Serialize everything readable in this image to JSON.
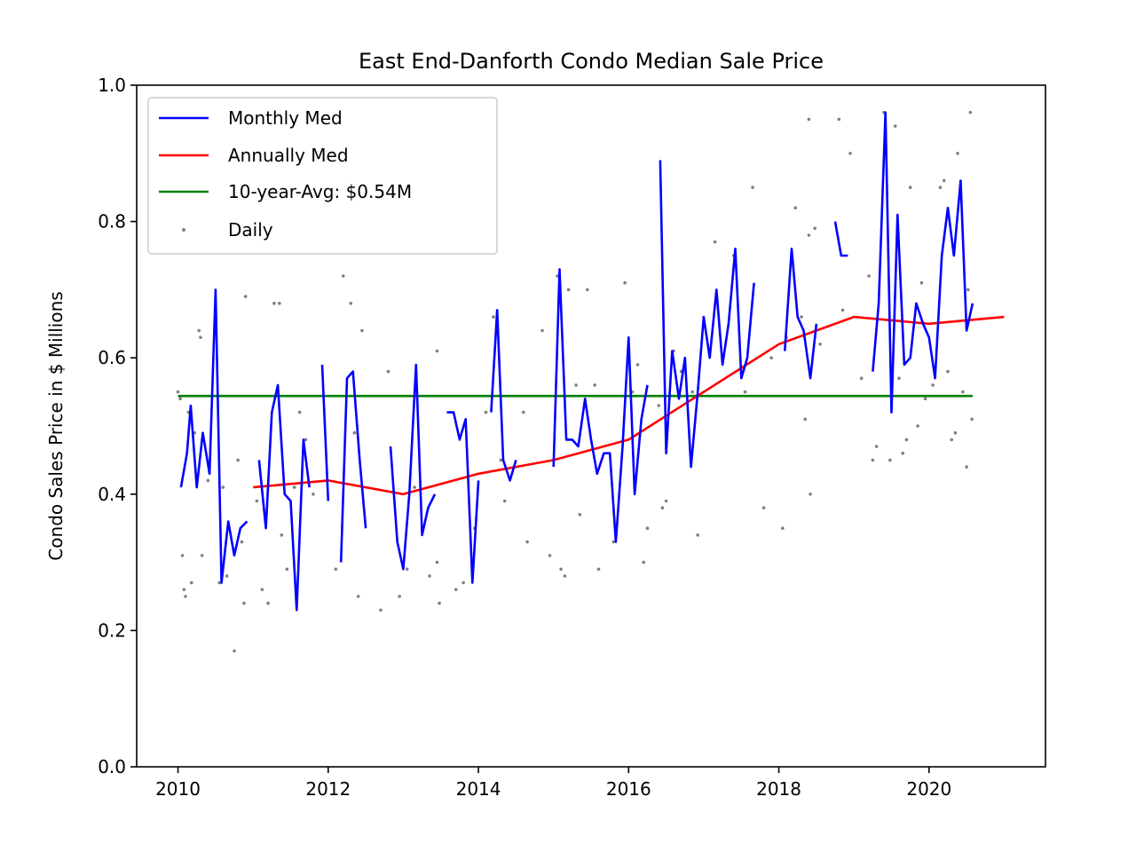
{
  "chart_data": {
    "type": "line",
    "title": "East End-Danforth Condo Median Sale Price",
    "xlabel": "",
    "ylabel": "Condo Sales Price in $ Millions",
    "xlim": [
      2009.45,
      2021.55
    ],
    "ylim": [
      0.0,
      1.0
    ],
    "x_ticks": [
      2010,
      2012,
      2014,
      2016,
      2018,
      2020
    ],
    "x_tick_labels": [
      "2010",
      "2012",
      "2014",
      "2016",
      "2018",
      "2020"
    ],
    "y_ticks": [
      0.0,
      0.2,
      0.4,
      0.6,
      0.8,
      1.0
    ],
    "y_tick_labels": [
      "0.0",
      "0.2",
      "0.4",
      "0.6",
      "0.8",
      "1.0"
    ],
    "grid": false,
    "legend_position": "top-left",
    "legend": [
      {
        "label": "Monthly Med",
        "color": "#0000ff",
        "kind": "line"
      },
      {
        "label": "Annually Med",
        "color": "#ff0000",
        "kind": "line"
      },
      {
        "label": "10-year-Avg: $0.54M",
        "color": "#008000",
        "kind": "line"
      },
      {
        "label": "Daily",
        "color": "#808080",
        "kind": "dot"
      }
    ],
    "series": [
      {
        "name": "Monthly Med",
        "type": "line",
        "color": "#0000ff",
        "segments": [
          [
            [
              2010.04,
              0.41
            ],
            [
              2010.12,
              0.46
            ],
            [
              2010.17,
              0.53
            ],
            [
              2010.25,
              0.41
            ],
            [
              2010.33,
              0.49
            ],
            [
              2010.42,
              0.43
            ],
            [
              2010.5,
              0.7
            ],
            [
              2010.58,
              0.27
            ],
            [
              2010.67,
              0.36
            ],
            [
              2010.75,
              0.31
            ],
            [
              2010.83,
              0.35
            ],
            [
              2010.92,
              0.36
            ]
          ],
          [
            [
              2011.08,
              0.45
            ],
            [
              2011.17,
              0.35
            ],
            [
              2011.25,
              0.52
            ],
            [
              2011.33,
              0.56
            ],
            [
              2011.42,
              0.4
            ],
            [
              2011.5,
              0.39
            ],
            [
              2011.58,
              0.23
            ],
            [
              2011.67,
              0.48
            ],
            [
              2011.75,
              0.41
            ]
          ],
          [
            [
              2011.92,
              0.59
            ],
            [
              2012.0,
              0.39
            ]
          ],
          [
            [
              2012.17,
              0.3
            ],
            [
              2012.25,
              0.57
            ],
            [
              2012.33,
              0.58
            ],
            [
              2012.42,
              0.45
            ],
            [
              2012.5,
              0.35
            ]
          ],
          [
            [
              2012.83,
              0.47
            ],
            [
              2012.92,
              0.33
            ],
            [
              2013.0,
              0.29
            ],
            [
              2013.08,
              0.4
            ],
            [
              2013.17,
              0.59
            ],
            [
              2013.25,
              0.34
            ],
            [
              2013.33,
              0.38
            ],
            [
              2013.42,
              0.4
            ]
          ],
          [
            [
              2013.58,
              0.52
            ],
            [
              2013.67,
              0.52
            ],
            [
              2013.75,
              0.48
            ],
            [
              2013.83,
              0.51
            ],
            [
              2013.92,
              0.27
            ],
            [
              2014.0,
              0.42
            ]
          ],
          [
            [
              2014.17,
              0.52
            ],
            [
              2014.25,
              0.67
            ],
            [
              2014.33,
              0.45
            ],
            [
              2014.42,
              0.42
            ],
            [
              2014.5,
              0.45
            ]
          ],
          [
            [
              2015.0,
              0.44
            ],
            [
              2015.08,
              0.73
            ],
            [
              2015.17,
              0.48
            ],
            [
              2015.25,
              0.48
            ],
            [
              2015.33,
              0.47
            ],
            [
              2015.42,
              0.54
            ],
            [
              2015.5,
              0.48
            ],
            [
              2015.58,
              0.43
            ],
            [
              2015.67,
              0.46
            ],
            [
              2015.75,
              0.46
            ],
            [
              2015.83,
              0.33
            ],
            [
              2015.92,
              0.47
            ],
            [
              2016.0,
              0.63
            ],
            [
              2016.08,
              0.4
            ],
            [
              2016.17,
              0.51
            ],
            [
              2016.25,
              0.56
            ]
          ],
          [
            [
              2016.42,
              0.89
            ],
            [
              2016.5,
              0.46
            ],
            [
              2016.58,
              0.61
            ],
            [
              2016.67,
              0.54
            ],
            [
              2016.75,
              0.6
            ],
            [
              2016.83,
              0.44
            ],
            [
              2016.92,
              0.55
            ],
            [
              2017.0,
              0.66
            ],
            [
              2017.08,
              0.6
            ],
            [
              2017.17,
              0.7
            ],
            [
              2017.25,
              0.59
            ],
            [
              2017.33,
              0.65
            ],
            [
              2017.42,
              0.76
            ],
            [
              2017.5,
              0.57
            ],
            [
              2017.58,
              0.6
            ],
            [
              2017.67,
              0.71
            ]
          ],
          [
            [
              2018.08,
              0.61
            ],
            [
              2018.17,
              0.76
            ],
            [
              2018.25,
              0.66
            ],
            [
              2018.33,
              0.64
            ],
            [
              2018.42,
              0.57
            ],
            [
              2018.5,
              0.65
            ]
          ],
          [
            [
              2018.75,
              0.8
            ],
            [
              2018.83,
              0.75
            ],
            [
              2018.92,
              0.75
            ]
          ],
          [
            [
              2019.25,
              0.58
            ],
            [
              2019.33,
              0.68
            ],
            [
              2019.42,
              0.96
            ],
            [
              2019.5,
              0.52
            ],
            [
              2019.58,
              0.81
            ],
            [
              2019.67,
              0.59
            ],
            [
              2019.75,
              0.6
            ],
            [
              2019.83,
              0.68
            ],
            [
              2019.92,
              0.65
            ],
            [
              2020.0,
              0.63
            ],
            [
              2020.08,
              0.57
            ],
            [
              2020.17,
              0.75
            ],
            [
              2020.25,
              0.82
            ],
            [
              2020.33,
              0.75
            ],
            [
              2020.42,
              0.86
            ],
            [
              2020.5,
              0.64
            ],
            [
              2020.58,
              0.68
            ]
          ]
        ]
      },
      {
        "name": "Annually Med",
        "type": "line",
        "color": "#ff0000",
        "points": [
          [
            2011.0,
            0.41
          ],
          [
            2012.0,
            0.42
          ],
          [
            2013.0,
            0.4
          ],
          [
            2014.0,
            0.43
          ],
          [
            2015.0,
            0.45
          ],
          [
            2016.0,
            0.48
          ],
          [
            2017.0,
            0.55
          ],
          [
            2018.0,
            0.62
          ],
          [
            2019.0,
            0.66
          ],
          [
            2020.0,
            0.65
          ],
          [
            2021.0,
            0.66
          ]
        ]
      },
      {
        "name": "10-year-Avg: $0.54M",
        "type": "hline",
        "color": "#008000",
        "value": 0.544,
        "x_range": [
          2010.0,
          2020.58
        ]
      },
      {
        "name": "Daily",
        "type": "scatter",
        "color": "#808080",
        "points": [
          [
            2010.0,
            0.55
          ],
          [
            2010.03,
            0.54
          ],
          [
            2010.06,
            0.31
          ],
          [
            2010.08,
            0.26
          ],
          [
            2010.1,
            0.25
          ],
          [
            2010.14,
            0.52
          ],
          [
            2010.18,
            0.27
          ],
          [
            2010.22,
            0.49
          ],
          [
            2010.28,
            0.64
          ],
          [
            2010.3,
            0.63
          ],
          [
            2010.32,
            0.31
          ],
          [
            2010.4,
            0.42
          ],
          [
            2010.55,
            0.27
          ],
          [
            2010.6,
            0.41
          ],
          [
            2010.65,
            0.28
          ],
          [
            2010.75,
            0.17
          ],
          [
            2010.8,
            0.45
          ],
          [
            2010.85,
            0.33
          ],
          [
            2010.88,
            0.24
          ],
          [
            2010.9,
            0.69
          ],
          [
            2011.05,
            0.39
          ],
          [
            2011.12,
            0.26
          ],
          [
            2011.2,
            0.24
          ],
          [
            2011.28,
            0.68
          ],
          [
            2011.35,
            0.68
          ],
          [
            2011.38,
            0.34
          ],
          [
            2011.45,
            0.29
          ],
          [
            2011.55,
            0.41
          ],
          [
            2011.62,
            0.52
          ],
          [
            2011.7,
            0.48
          ],
          [
            2011.8,
            0.4
          ],
          [
            2012.1,
            0.29
          ],
          [
            2012.2,
            0.72
          ],
          [
            2012.3,
            0.68
          ],
          [
            2012.4,
            0.25
          ],
          [
            2012.45,
            0.64
          ],
          [
            2012.35,
            0.49
          ],
          [
            2012.7,
            0.23
          ],
          [
            2012.8,
            0.58
          ],
          [
            2012.95,
            0.25
          ],
          [
            2013.05,
            0.29
          ],
          [
            2013.15,
            0.41
          ],
          [
            2013.35,
            0.28
          ],
          [
            2013.45,
            0.3
          ],
          [
            2013.48,
            0.24
          ],
          [
            2013.45,
            0.61
          ],
          [
            2013.7,
            0.26
          ],
          [
            2013.8,
            0.27
          ],
          [
            2013.95,
            0.35
          ],
          [
            2014.1,
            0.52
          ],
          [
            2014.2,
            0.66
          ],
          [
            2014.3,
            0.45
          ],
          [
            2014.35,
            0.39
          ],
          [
            2014.6,
            0.52
          ],
          [
            2014.65,
            0.33
          ],
          [
            2014.85,
            0.64
          ],
          [
            2014.95,
            0.31
          ],
          [
            2015.05,
            0.72
          ],
          [
            2015.1,
            0.29
          ],
          [
            2015.15,
            0.28
          ],
          [
            2015.2,
            0.7
          ],
          [
            2015.3,
            0.56
          ],
          [
            2015.35,
            0.37
          ],
          [
            2015.45,
            0.7
          ],
          [
            2015.55,
            0.56
          ],
          [
            2015.6,
            0.29
          ],
          [
            2015.8,
            0.33
          ],
          [
            2015.95,
            0.71
          ],
          [
            2016.05,
            0.55
          ],
          [
            2016.12,
            0.59
          ],
          [
            2016.2,
            0.3
          ],
          [
            2016.25,
            0.35
          ],
          [
            2016.4,
            0.53
          ],
          [
            2016.45,
            0.38
          ],
          [
            2016.5,
            0.39
          ],
          [
            2016.6,
            0.61
          ],
          [
            2016.7,
            0.58
          ],
          [
            2016.85,
            0.55
          ],
          [
            2016.92,
            0.34
          ],
          [
            2017.15,
            0.77
          ],
          [
            2017.25,
            0.6
          ],
          [
            2017.4,
            0.75
          ],
          [
            2017.55,
            0.55
          ],
          [
            2017.65,
            0.85
          ],
          [
            2017.8,
            0.38
          ],
          [
            2017.9,
            0.6
          ],
          [
            2018.05,
            0.35
          ],
          [
            2018.1,
            0.63
          ],
          [
            2018.22,
            0.82
          ],
          [
            2018.3,
            0.66
          ],
          [
            2018.35,
            0.51
          ],
          [
            2018.4,
            0.78
          ],
          [
            2018.42,
            0.4
          ],
          [
            2018.48,
            0.79
          ],
          [
            2018.55,
            0.62
          ],
          [
            2018.4,
            0.95
          ],
          [
            2018.8,
            0.95
          ],
          [
            2018.85,
            0.67
          ],
          [
            2018.95,
            0.9
          ],
          [
            2019.1,
            0.57
          ],
          [
            2019.2,
            0.72
          ],
          [
            2019.25,
            0.45
          ],
          [
            2019.3,
            0.47
          ],
          [
            2019.4,
            0.96
          ],
          [
            2019.48,
            0.45
          ],
          [
            2019.55,
            0.94
          ],
          [
            2019.6,
            0.57
          ],
          [
            2019.65,
            0.46
          ],
          [
            2019.7,
            0.48
          ],
          [
            2019.75,
            0.85
          ],
          [
            2019.85,
            0.5
          ],
          [
            2019.9,
            0.71
          ],
          [
            2019.95,
            0.54
          ],
          [
            2020.05,
            0.56
          ],
          [
            2020.15,
            0.85
          ],
          [
            2020.2,
            0.86
          ],
          [
            2020.25,
            0.58
          ],
          [
            2020.3,
            0.48
          ],
          [
            2020.35,
            0.49
          ],
          [
            2020.38,
            0.9
          ],
          [
            2020.45,
            0.55
          ],
          [
            2020.5,
            0.44
          ],
          [
            2020.55,
            0.96
          ],
          [
            2020.57,
            0.51
          ],
          [
            2020.52,
            0.7
          ]
        ]
      }
    ]
  }
}
